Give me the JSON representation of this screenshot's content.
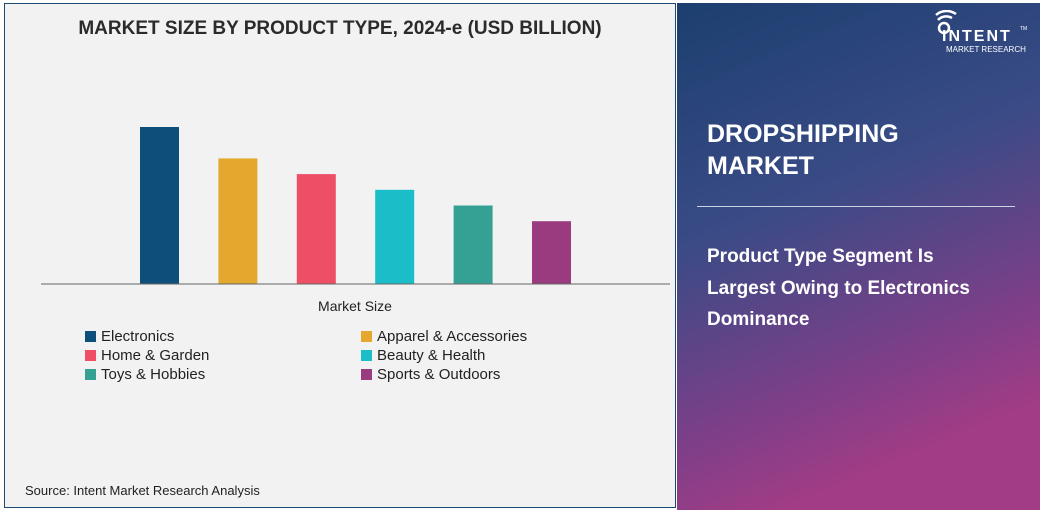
{
  "chart_data": {
    "type": "bar",
    "title": "MARKET SIZE BY PRODUCT TYPE, 2024-e (USD BILLION)",
    "xlabel": "Market Size",
    "ylabel": "",
    "categories": [
      "Electronics",
      "Apparel & Accessories",
      "Home & Garden",
      "Beauty & Health",
      "Toys & Hobbies",
      "Sports & Outdoors"
    ],
    "values": [
      100,
      80,
      70,
      60,
      50,
      40
    ],
    "value_note_hidden": null,
    "colors": [
      "#0d4f7a",
      "#e3a82d",
      "#ee4f66",
      "#1bbec8",
      "#35a195",
      "#9a3b80"
    ],
    "ylim": [
      0,
      100
    ],
    "grid": false,
    "legend_position": "bottom"
  },
  "source": "Source: Intent Market Research Analysis",
  "panel": {
    "title_line1": "DROPSHIPPING",
    "title_line2": "MARKET",
    "subtitle": "Product Type Segment Is Largest Owing to Electronics Dominance"
  },
  "logo": {
    "name": "INTENT",
    "tagline": "MARKET RESEARCH",
    "tm": "TM"
  }
}
